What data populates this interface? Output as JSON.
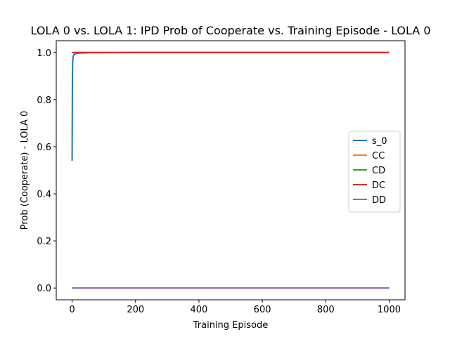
{
  "chart_data": {
    "type": "line",
    "title": "LOLA 0 vs. LOLA 1: IPD Prob of Cooperate vs. Training Episode - LOLA 0",
    "xlabel": "Training Episode",
    "ylabel": "Prob (Cooperate) - LOLA 0",
    "xlim": [
      -50,
      1050
    ],
    "ylim": [
      -0.05,
      1.05
    ],
    "xticks": [
      0,
      200,
      400,
      600,
      800,
      1000
    ],
    "yticks": [
      0.0,
      0.2,
      0.4,
      0.6,
      0.8,
      1.0
    ],
    "xtick_labels": [
      "0",
      "200",
      "400",
      "600",
      "800",
      "1000"
    ],
    "ytick_labels": [
      "0.0",
      "0.2",
      "0.4",
      "0.6",
      "0.8",
      "1.0"
    ],
    "grid": false,
    "legend_position": "center-right",
    "series": [
      {
        "name": "s_0",
        "color": "#1f77b4",
        "x": [
          0,
          1,
          2,
          3,
          5,
          8,
          12,
          20,
          35,
          60,
          100,
          200,
          400,
          600,
          800,
          1000
        ],
        "y": [
          0.54,
          0.9,
          0.965,
          0.98,
          0.99,
          0.993,
          0.995,
          0.997,
          0.998,
          0.999,
          0.999,
          1.0,
          1.0,
          1.0,
          1.0,
          1.0
        ]
      },
      {
        "name": "CC",
        "color": "#ff7f0e",
        "x": [
          0,
          1000
        ],
        "y": [
          1.0,
          1.0
        ]
      },
      {
        "name": "CD",
        "color": "#2ca02c",
        "x": [
          0,
          1000
        ],
        "y": [
          0.0,
          0.0
        ]
      },
      {
        "name": "DC",
        "color": "#d62728",
        "x": [
          0,
          1000
        ],
        "y": [
          1.0,
          1.0
        ]
      },
      {
        "name": "DD",
        "color": "#9467bd",
        "x": [
          0,
          1000
        ],
        "y": [
          0.0,
          0.0
        ]
      }
    ]
  }
}
